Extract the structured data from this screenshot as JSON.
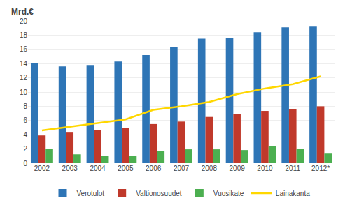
{
  "chart_data": {
    "type": "bar",
    "ylabel": "Mrd.€",
    "categories": [
      "2002",
      "2003",
      "2004",
      "2005",
      "2006",
      "2007",
      "2008",
      "2009",
      "2010",
      "2011",
      "2012*"
    ],
    "series": [
      {
        "name": "Verotulot",
        "color": "#2E75B6",
        "values": [
          14.1,
          13.6,
          13.8,
          14.3,
          15.2,
          16.3,
          17.5,
          17.6,
          18.4,
          19.1,
          19.3
        ]
      },
      {
        "name": "Valtionosuudet",
        "color": "#C0392B",
        "values": [
          3.9,
          4.3,
          4.7,
          5.0,
          5.5,
          5.85,
          6.5,
          6.9,
          7.35,
          7.65,
          8.0
        ]
      },
      {
        "name": "Vuosikate",
        "color": "#4CAF50",
        "values": [
          2.0,
          1.25,
          1.05,
          1.05,
          1.7,
          1.95,
          1.95,
          1.85,
          2.4,
          2.0,
          1.35
        ]
      },
      {
        "name": "Lainakanta",
        "color": "#FFD700",
        "type": "line",
        "values": [
          4.6,
          5.1,
          5.6,
          6.15,
          7.5,
          8.0,
          8.6,
          9.7,
          10.5,
          11.1,
          12.2
        ]
      }
    ],
    "ylim": [
      0,
      20
    ],
    "yticks": [
      0,
      2,
      4,
      6,
      8,
      10,
      12,
      14,
      16,
      18,
      20
    ],
    "grid": true,
    "legend": "bottom"
  }
}
